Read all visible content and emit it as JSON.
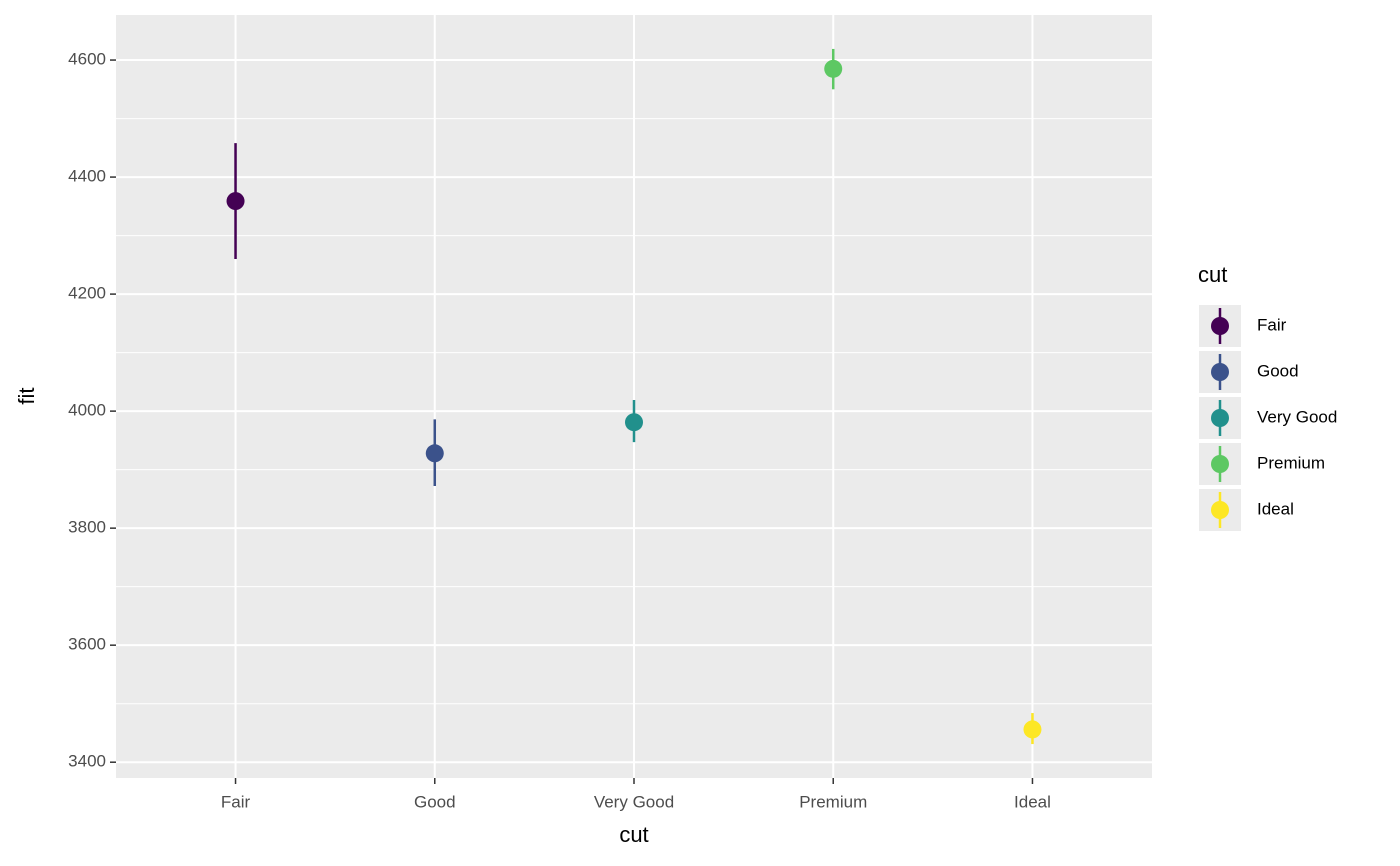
{
  "chart_data": {
    "type": "pointrange",
    "x_label": "cut",
    "y_label": "fit",
    "legend_title": "cut",
    "categories": [
      "Fair",
      "Good",
      "Very Good",
      "Premium",
      "Ideal"
    ],
    "values": [
      4359,
      3928,
      3981,
      4585,
      3456
    ],
    "lower": [
      4260,
      3872,
      3947,
      4550,
      3431
    ],
    "upper": [
      4458,
      3986,
      4019,
      4619,
      3484
    ],
    "colors": [
      "#440154",
      "#3b528b",
      "#21908c",
      "#5dc863",
      "#fde725"
    ],
    "ylim": [
      3373,
      4677
    ],
    "yticks": [
      3400,
      3600,
      3800,
      4000,
      4200,
      4400,
      4600
    ],
    "grid": true,
    "legend_position": "right"
  }
}
